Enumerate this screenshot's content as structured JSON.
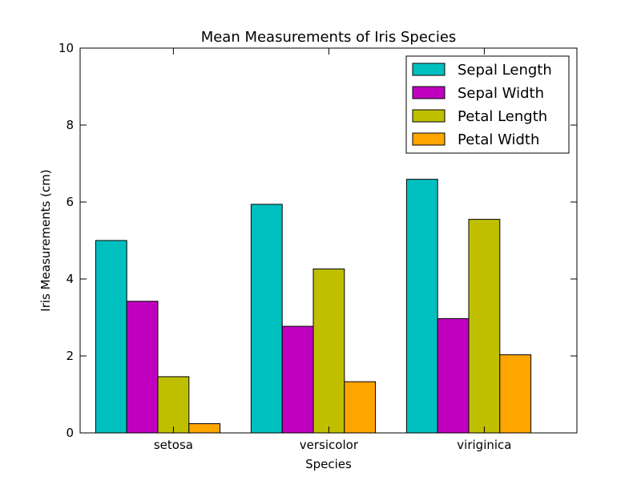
{
  "chart_data": {
    "type": "bar",
    "title": "Mean Measurements of Iris Species",
    "xlabel": "Species",
    "ylabel": "Iris Measurements (cm)",
    "categories": [
      "setosa",
      "versicolor",
      "viriginica"
    ],
    "ylim": [
      0,
      10
    ],
    "yticks": [
      0,
      2,
      4,
      6,
      8,
      10
    ],
    "grid": false,
    "legend_position": "top-right",
    "series": [
      {
        "name": "Sepal Length",
        "color": "#00bfbf",
        "values": [
          5.0,
          5.94,
          6.59
        ]
      },
      {
        "name": "Sepal Width",
        "color": "#bf00bf",
        "values": [
          3.42,
          2.77,
          2.97
        ]
      },
      {
        "name": "Petal Length",
        "color": "#bfbf00",
        "values": [
          1.46,
          4.26,
          5.55
        ]
      },
      {
        "name": "Petal Width",
        "color": "#ffa500",
        "values": [
          0.24,
          1.33,
          2.03
        ]
      }
    ]
  }
}
